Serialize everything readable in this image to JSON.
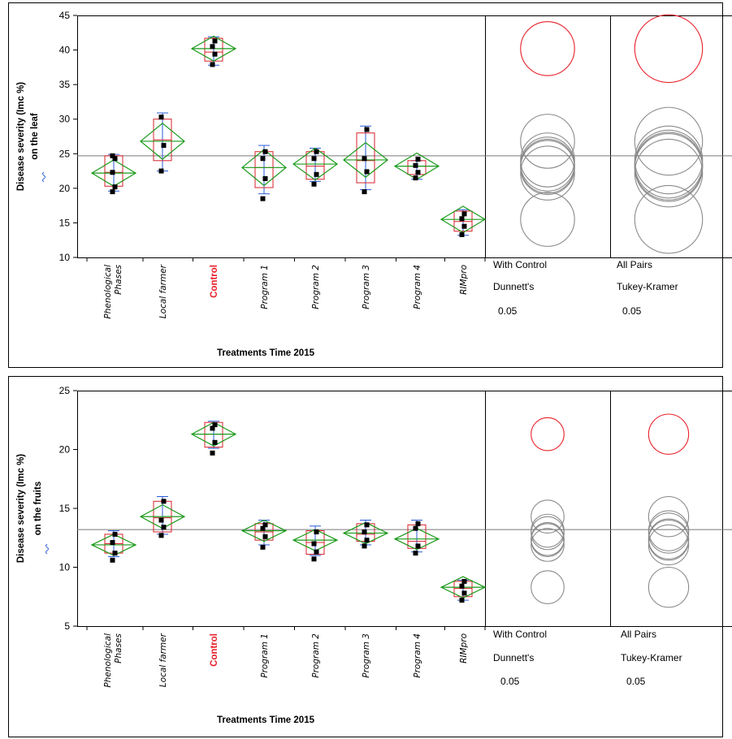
{
  "colors": {
    "frame": "#000000",
    "box": "#d8202a",
    "whisker": "#2a5bd7",
    "diamond": "#1a9a1a",
    "point": "#000000",
    "grand_mean": "#777777",
    "circle_control": "#e8202a",
    "circle_other": "#8a8a8a",
    "control_label": "#e8202a"
  },
  "chart_data": [
    {
      "type": "box-diamond",
      "ylabel_line1": "Disease severity (Imc %)",
      "ylabel_line2": "on the leaf",
      "xlabel": "Treatments  Time  2015",
      "ylim": [
        10,
        45
      ],
      "yticks": [
        10,
        15,
        20,
        25,
        30,
        35,
        40,
        45
      ],
      "categories": [
        "Phenological Phases",
        "Local farmer",
        "Control",
        "Program 1",
        "Program 2",
        "Program 3",
        "Program 4",
        "RIMpro"
      ],
      "control_category": "Control",
      "grand_mean": 24.7,
      "groups": [
        {
          "mean": 22.2,
          "ci": [
            20.3,
            24.1
          ],
          "q1": 20.3,
          "q3": 24.7,
          "median": 22.3,
          "whisk": [
            19.6,
            24.9
          ],
          "points": [
            19.5,
            20.2,
            22.3,
            24.3,
            24.7
          ]
        },
        {
          "mean": 26.8,
          "ci": [
            24.2,
            29.4
          ],
          "q1": 24.0,
          "q3": 30.0,
          "median": 27.0,
          "whisk": [
            22.5,
            30.9
          ],
          "points": [
            22.5,
            26.2,
            30.3
          ]
        },
        {
          "mean": 40.2,
          "ci": [
            38.4,
            42.0
          ],
          "q1": 38.4,
          "q3": 41.7,
          "median": 39.7,
          "whisk": [
            37.8,
            41.9
          ],
          "points": [
            37.9,
            39.4,
            40.5,
            41.3
          ]
        },
        {
          "mean": 23.0,
          "ci": [
            20.4,
            25.6
          ],
          "q1": 20.1,
          "q3": 25.3,
          "median": 23.0,
          "whisk": [
            19.2,
            26.2
          ],
          "points": [
            18.5,
            21.4,
            24.3,
            25.3
          ]
        },
        {
          "mean": 23.5,
          "ci": [
            21.2,
            25.8
          ],
          "q1": 21.3,
          "q3": 25.3,
          "median": 23.2,
          "whisk": [
            21.0,
            25.8
          ],
          "points": [
            20.6,
            22.0,
            24.3,
            25.3
          ]
        },
        {
          "mean": 24.1,
          "ci": [
            21.6,
            26.6
          ],
          "q1": 20.8,
          "q3": 28.0,
          "median": 24.0,
          "whisk": [
            19.8,
            29.0
          ],
          "points": [
            19.5,
            22.4,
            24.3,
            28.5
          ]
        },
        {
          "mean": 23.2,
          "ci": [
            21.3,
            25.1
          ],
          "q1": 22.0,
          "q3": 24.0,
          "median": 23.2,
          "whisk": [
            21.3,
            24.0
          ],
          "points": [
            21.5,
            22.3,
            23.3,
            24.2
          ]
        },
        {
          "mean": 15.5,
          "ci": [
            13.6,
            17.4
          ],
          "q1": 13.8,
          "q3": 16.7,
          "median": 15.2,
          "whisk": [
            13.2,
            16.9
          ],
          "points": [
            13.3,
            14.5,
            15.6,
            16.3
          ]
        }
      ],
      "comparison_panels": [
        {
          "line1": "With Control",
          "line2": "Dunnett's",
          "alpha": "0.05",
          "circles": [
            {
              "center": 40.2,
              "radius": 3.9,
              "control": true
            },
            {
              "center": 26.8,
              "radius": 3.9
            },
            {
              "center": 24.1,
              "radius": 3.9
            },
            {
              "center": 23.5,
              "radius": 3.9
            },
            {
              "center": 23.2,
              "radius": 3.9
            },
            {
              "center": 23.0,
              "radius": 3.9
            },
            {
              "center": 22.2,
              "radius": 3.9
            },
            {
              "center": 15.5,
              "radius": 3.9
            }
          ]
        },
        {
          "line1": "All Pairs",
          "line2": "Tukey-Kramer",
          "alpha": "0.05",
          "circles": [
            {
              "center": 40.2,
              "radius": 4.9,
              "control": true
            },
            {
              "center": 26.8,
              "radius": 4.9
            },
            {
              "center": 24.1,
              "radius": 4.9
            },
            {
              "center": 23.5,
              "radius": 4.9
            },
            {
              "center": 23.2,
              "radius": 4.9
            },
            {
              "center": 23.0,
              "radius": 4.9
            },
            {
              "center": 22.2,
              "radius": 4.9
            },
            {
              "center": 15.5,
              "radius": 4.9
            }
          ]
        }
      ]
    },
    {
      "type": "box-diamond",
      "ylabel_line1": "Disease severity (Imc %)",
      "ylabel_line2": "on the fruits",
      "xlabel": "Treatments  Time  2015",
      "ylim": [
        5,
        25
      ],
      "yticks": [
        5,
        10,
        15,
        20,
        25
      ],
      "categories": [
        "Phenological Phases",
        "Local farmer",
        "Control",
        "Program 1",
        "Program 2",
        "Program 3",
        "Program 4",
        "RIMpro"
      ],
      "control_category": "Control",
      "grand_mean": 13.2,
      "groups": [
        {
          "mean": 11.9,
          "ci": [
            11.0,
            12.8
          ],
          "q1": 11.2,
          "q3": 12.8,
          "median": 12.0,
          "whisk": [
            10.9,
            13.1
          ],
          "points": [
            10.6,
            11.2,
            12.1,
            12.8
          ]
        },
        {
          "mean": 14.3,
          "ci": [
            13.3,
            15.3
          ],
          "q1": 13.0,
          "q3": 15.6,
          "median": 14.2,
          "whisk": [
            12.8,
            16.0
          ],
          "points": [
            12.7,
            13.4,
            14.0,
            15.6
          ]
        },
        {
          "mean": 21.3,
          "ci": [
            20.3,
            22.3
          ],
          "q1": 20.2,
          "q3": 22.3,
          "median": 21.3,
          "whisk": [
            20.1,
            22.4
          ],
          "points": [
            19.7,
            20.6,
            21.8,
            22.1
          ]
        },
        {
          "mean": 13.1,
          "ci": [
            12.2,
            14.0
          ],
          "q1": 12.3,
          "q3": 13.7,
          "median": 13.0,
          "whisk": [
            11.9,
            14.0
          ],
          "points": [
            11.7,
            12.6,
            13.3,
            13.6
          ]
        },
        {
          "mean": 12.3,
          "ci": [
            11.4,
            13.2
          ],
          "q1": 11.1,
          "q3": 13.1,
          "median": 12.1,
          "whisk": [
            11.0,
            13.5
          ],
          "points": [
            10.7,
            11.3,
            12.0,
            13.0
          ]
        },
        {
          "mean": 12.9,
          "ci": [
            12.0,
            13.8
          ],
          "q1": 12.2,
          "q3": 13.7,
          "median": 12.8,
          "whisk": [
            11.9,
            14.0
          ],
          "points": [
            11.8,
            12.3,
            13.0,
            13.6
          ]
        },
        {
          "mean": 12.4,
          "ci": [
            11.5,
            13.3
          ],
          "q1": 11.6,
          "q3": 13.6,
          "median": 12.2,
          "whisk": [
            11.3,
            14.0
          ],
          "points": [
            11.2,
            11.8,
            13.3,
            13.7
          ]
        },
        {
          "mean": 8.3,
          "ci": [
            7.4,
            9.2
          ],
          "q1": 7.5,
          "q3": 8.8,
          "median": 8.2,
          "whisk": [
            7.2,
            8.9
          ],
          "points": [
            7.2,
            7.8,
            8.4,
            8.8
          ]
        }
      ],
      "comparison_panels": [
        {
          "line1": "With Control",
          "line2": "Dunnett's",
          "alpha": "0.05",
          "circles": [
            {
              "center": 21.3,
              "radius": 1.4,
              "control": true
            },
            {
              "center": 14.3,
              "radius": 1.4
            },
            {
              "center": 13.1,
              "radius": 1.4
            },
            {
              "center": 12.9,
              "radius": 1.4
            },
            {
              "center": 12.4,
              "radius": 1.4
            },
            {
              "center": 12.3,
              "radius": 1.4
            },
            {
              "center": 11.9,
              "radius": 1.4
            },
            {
              "center": 8.3,
              "radius": 1.4
            }
          ]
        },
        {
          "line1": "All Pairs",
          "line2": "Tukey-Kramer",
          "alpha": "0.05",
          "circles": [
            {
              "center": 21.3,
              "radius": 1.7,
              "control": true
            },
            {
              "center": 14.3,
              "radius": 1.7
            },
            {
              "center": 13.1,
              "radius": 1.7
            },
            {
              "center": 12.9,
              "radius": 1.7
            },
            {
              "center": 12.4,
              "radius": 1.7
            },
            {
              "center": 12.3,
              "radius": 1.7
            },
            {
              "center": 11.9,
              "radius": 1.7
            },
            {
              "center": 8.3,
              "radius": 1.7
            }
          ]
        }
      ]
    }
  ]
}
